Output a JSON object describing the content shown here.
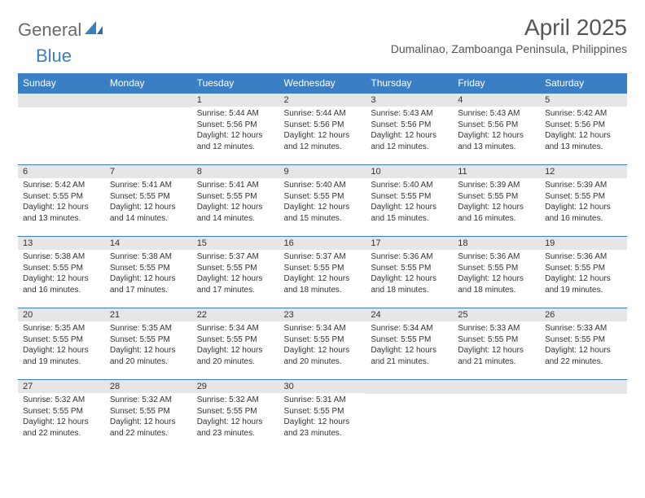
{
  "brand": {
    "part1": "General",
    "part2": "Blue"
  },
  "title": "April 2025",
  "location": "Dumalinao, Zamboanga Peninsula, Philippines",
  "colors": {
    "header_bg": "#3a7fc4",
    "header_text": "#ffffff",
    "daynum_bg": "#e6e6e6",
    "row_border": "#3a7fc4",
    "body_text": "#333333",
    "title_text": "#555555",
    "logo_gray": "#6b6b6b",
    "logo_blue": "#3a7fc4",
    "page_bg": "#ffffff"
  },
  "typography": {
    "month_title_pt": 28,
    "location_pt": 14,
    "dayheader_pt": 12,
    "daynum_pt": 11,
    "cell_pt": 10
  },
  "day_headers": [
    "Sunday",
    "Monday",
    "Tuesday",
    "Wednesday",
    "Thursday",
    "Friday",
    "Saturday"
  ],
  "weeks": [
    [
      {
        "n": "",
        "sr": "",
        "ss": "",
        "dl": ""
      },
      {
        "n": "",
        "sr": "",
        "ss": "",
        "dl": ""
      },
      {
        "n": "1",
        "sr": "5:44 AM",
        "ss": "5:56 PM",
        "dl": "12 hours and 12 minutes."
      },
      {
        "n": "2",
        "sr": "5:44 AM",
        "ss": "5:56 PM",
        "dl": "12 hours and 12 minutes."
      },
      {
        "n": "3",
        "sr": "5:43 AM",
        "ss": "5:56 PM",
        "dl": "12 hours and 12 minutes."
      },
      {
        "n": "4",
        "sr": "5:43 AM",
        "ss": "5:56 PM",
        "dl": "12 hours and 13 minutes."
      },
      {
        "n": "5",
        "sr": "5:42 AM",
        "ss": "5:56 PM",
        "dl": "12 hours and 13 minutes."
      }
    ],
    [
      {
        "n": "6",
        "sr": "5:42 AM",
        "ss": "5:55 PM",
        "dl": "12 hours and 13 minutes."
      },
      {
        "n": "7",
        "sr": "5:41 AM",
        "ss": "5:55 PM",
        "dl": "12 hours and 14 minutes."
      },
      {
        "n": "8",
        "sr": "5:41 AM",
        "ss": "5:55 PM",
        "dl": "12 hours and 14 minutes."
      },
      {
        "n": "9",
        "sr": "5:40 AM",
        "ss": "5:55 PM",
        "dl": "12 hours and 15 minutes."
      },
      {
        "n": "10",
        "sr": "5:40 AM",
        "ss": "5:55 PM",
        "dl": "12 hours and 15 minutes."
      },
      {
        "n": "11",
        "sr": "5:39 AM",
        "ss": "5:55 PM",
        "dl": "12 hours and 16 minutes."
      },
      {
        "n": "12",
        "sr": "5:39 AM",
        "ss": "5:55 PM",
        "dl": "12 hours and 16 minutes."
      }
    ],
    [
      {
        "n": "13",
        "sr": "5:38 AM",
        "ss": "5:55 PM",
        "dl": "12 hours and 16 minutes."
      },
      {
        "n": "14",
        "sr": "5:38 AM",
        "ss": "5:55 PM",
        "dl": "12 hours and 17 minutes."
      },
      {
        "n": "15",
        "sr": "5:37 AM",
        "ss": "5:55 PM",
        "dl": "12 hours and 17 minutes."
      },
      {
        "n": "16",
        "sr": "5:37 AM",
        "ss": "5:55 PM",
        "dl": "12 hours and 18 minutes."
      },
      {
        "n": "17",
        "sr": "5:36 AM",
        "ss": "5:55 PM",
        "dl": "12 hours and 18 minutes."
      },
      {
        "n": "18",
        "sr": "5:36 AM",
        "ss": "5:55 PM",
        "dl": "12 hours and 18 minutes."
      },
      {
        "n": "19",
        "sr": "5:36 AM",
        "ss": "5:55 PM",
        "dl": "12 hours and 19 minutes."
      }
    ],
    [
      {
        "n": "20",
        "sr": "5:35 AM",
        "ss": "5:55 PM",
        "dl": "12 hours and 19 minutes."
      },
      {
        "n": "21",
        "sr": "5:35 AM",
        "ss": "5:55 PM",
        "dl": "12 hours and 20 minutes."
      },
      {
        "n": "22",
        "sr": "5:34 AM",
        "ss": "5:55 PM",
        "dl": "12 hours and 20 minutes."
      },
      {
        "n": "23",
        "sr": "5:34 AM",
        "ss": "5:55 PM",
        "dl": "12 hours and 20 minutes."
      },
      {
        "n": "24",
        "sr": "5:34 AM",
        "ss": "5:55 PM",
        "dl": "12 hours and 21 minutes."
      },
      {
        "n": "25",
        "sr": "5:33 AM",
        "ss": "5:55 PM",
        "dl": "12 hours and 21 minutes."
      },
      {
        "n": "26",
        "sr": "5:33 AM",
        "ss": "5:55 PM",
        "dl": "12 hours and 22 minutes."
      }
    ],
    [
      {
        "n": "27",
        "sr": "5:32 AM",
        "ss": "5:55 PM",
        "dl": "12 hours and 22 minutes."
      },
      {
        "n": "28",
        "sr": "5:32 AM",
        "ss": "5:55 PM",
        "dl": "12 hours and 22 minutes."
      },
      {
        "n": "29",
        "sr": "5:32 AM",
        "ss": "5:55 PM",
        "dl": "12 hours and 23 minutes."
      },
      {
        "n": "30",
        "sr": "5:31 AM",
        "ss": "5:55 PM",
        "dl": "12 hours and 23 minutes."
      },
      {
        "n": "",
        "sr": "",
        "ss": "",
        "dl": ""
      },
      {
        "n": "",
        "sr": "",
        "ss": "",
        "dl": ""
      },
      {
        "n": "",
        "sr": "",
        "ss": "",
        "dl": ""
      }
    ]
  ],
  "labels": {
    "sunrise": "Sunrise: ",
    "sunset": "Sunset: ",
    "daylight": "Daylight: "
  }
}
